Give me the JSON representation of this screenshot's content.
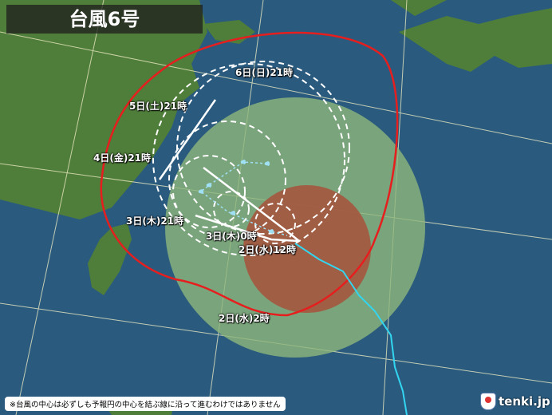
{
  "title": "台風6号",
  "labels": {
    "d6": "6日(日)21時",
    "d5": "5日(土)21時",
    "d4": "4日(金)21時",
    "d3_21": "3日(木)21時",
    "d3_0": "3日(木)0時",
    "d2_12": "2日(水)12時",
    "d2_2": "2日(水)2時"
  },
  "footnote": "※台風の中心は必ずしも予報円の中心を結ぶ線に沿って進むわけではありません",
  "logo": "tenki.jp",
  "colors": {
    "ocean": "#2a5b7f",
    "land": "#4f7d3a",
    "gale_area": "#7fa36a",
    "storm_area": "#a4573f",
    "storm_warning_line": "#e61e1e",
    "track": "#33d6f0"
  }
}
